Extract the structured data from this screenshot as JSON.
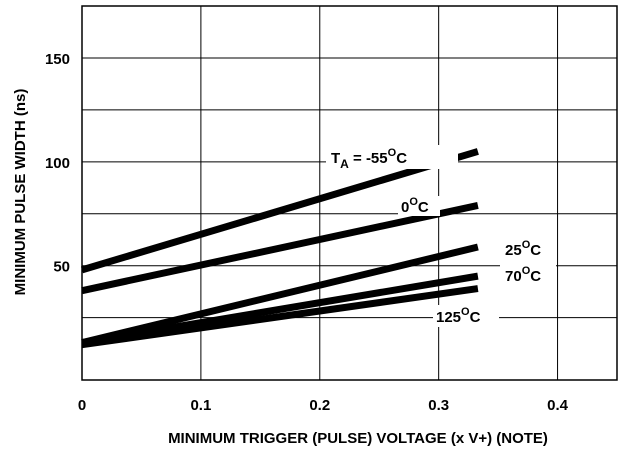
{
  "chart_data": {
    "type": "line",
    "title": "",
    "xlabel": "MINIMUM TRIGGER (PULSE) VOLTAGE (x V+) (NOTE)",
    "ylabel": "MINIMUM PULSE WIDTH (ns)",
    "xlim": [
      0,
      0.45
    ],
    "ylim": [
      -5,
      175
    ],
    "x_ticks": [
      "0",
      "0.1",
      "0.2",
      "0.3",
      "0.4"
    ],
    "y_ticks": [
      "50",
      "100",
      "150"
    ],
    "grid": true,
    "legend": "inline labels",
    "series": [
      {
        "name": "T_A = -55°C",
        "x": [
          0,
          0.333
        ],
        "values": [
          48,
          105
        ]
      },
      {
        "name": "0°C",
        "x": [
          0,
          0.333
        ],
        "values": [
          38,
          79
        ]
      },
      {
        "name": "25°C",
        "x": [
          0,
          0.333
        ],
        "values": [
          13,
          59
        ]
      },
      {
        "name": "70°C",
        "x": [
          0,
          0.333
        ],
        "values": [
          13,
          45
        ]
      },
      {
        "name": "125°C",
        "x": [
          0,
          0.333
        ],
        "values": [
          12,
          39
        ]
      }
    ],
    "series_labels": {
      "s0": {
        "prefix": "T",
        "sub": "A",
        "mid": " = -55",
        "sup": "O",
        "suffix": "C"
      },
      "s1": {
        "prefix": "0",
        "sup": "O",
        "suffix": "C"
      },
      "s2": {
        "prefix": "25",
        "sup": "O",
        "suffix": "C"
      },
      "s3": {
        "prefix": "70",
        "sup": "O",
        "suffix": "C"
      },
      "s4": {
        "prefix": "125",
        "sup": "O",
        "suffix": "C"
      }
    },
    "colors": {
      "line": "#000000",
      "grid": "#000000",
      "background": "#ffffff"
    }
  }
}
